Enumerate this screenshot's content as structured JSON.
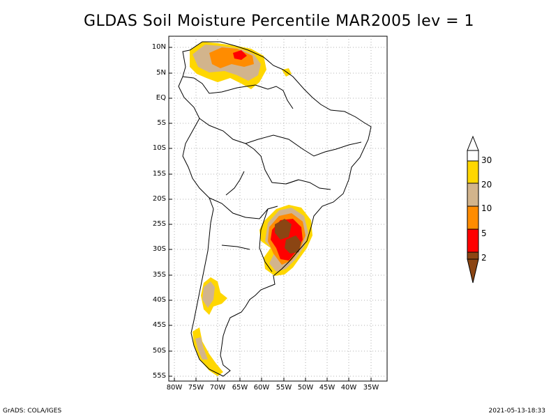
{
  "title": "GLDAS Soil Moisture Percentile MAR2005 lev = 1",
  "lat_labels": [
    "10N",
    "5N",
    "EQ",
    "5S",
    "10S",
    "15S",
    "20S",
    "25S",
    "30S",
    "35S",
    "40S",
    "45S",
    "50S",
    "55S"
  ],
  "lon_labels": [
    "80W",
    "75W",
    "70W",
    "65W",
    "60W",
    "55W",
    "50W",
    "45W",
    "40W",
    "35W"
  ],
  "legend": {
    "ticks": [
      "30",
      "20",
      "10",
      "5",
      "2"
    ],
    "colors": {
      "above_30": "#ffffff",
      "c20_30": "#ffd700",
      "c10_20": "#d2b48c",
      "c5_10": "#ff8c00",
      "c2_5": "#ff0000",
      "below_2": "#8b4513"
    }
  },
  "footer": {
    "left": "GrADS: COLA/IGES",
    "right": "2021-05-13-18:33"
  }
}
